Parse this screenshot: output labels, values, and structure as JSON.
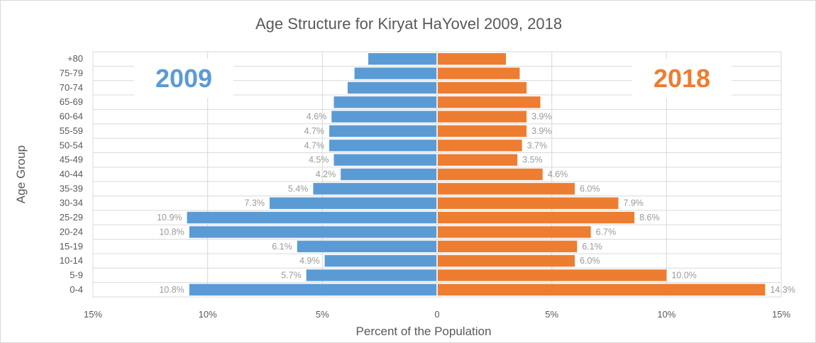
{
  "chart_data": {
    "type": "bar",
    "orientation": "horizontal-pyramid",
    "title": "Age Structure for Kiryat HaYovel 2009, 2018",
    "xlabel": "Percent of the Population",
    "ylabel": "Age Group",
    "xlim": [
      -15,
      15
    ],
    "xticks": [
      "15%",
      "10%",
      "5%",
      "0",
      "5%",
      "10%",
      "15%"
    ],
    "grid": true,
    "categories": [
      "0-4",
      "5-9",
      "10-14",
      "15-19",
      "20-24",
      "25-29",
      "30-34",
      "35-39",
      "40-44",
      "45-49",
      "50-54",
      "55-59",
      "60-64",
      "65-69",
      "70-74",
      "75-79",
      "+80"
    ],
    "series": [
      {
        "name": "2009",
        "side": "left",
        "color": "#5b9bd5",
        "values": [
          10.8,
          5.7,
          4.9,
          6.1,
          10.8,
          10.9,
          7.3,
          5.4,
          4.2,
          4.5,
          4.7,
          4.7,
          4.6,
          4.5,
          3.9,
          3.6,
          3.0
        ],
        "labels": [
          "10.8%",
          "5.7%",
          "4.9%",
          "6.1%",
          "10.8%",
          "10.9%",
          "7.3%",
          "5.4%",
          "4.2%",
          "4.5%",
          "4.7%",
          "4.7%",
          "4.6%",
          "",
          "",
          "",
          ""
        ]
      },
      {
        "name": "2018",
        "side": "right",
        "color": "#ed7d31",
        "values": [
          14.3,
          10.0,
          6.0,
          6.1,
          6.7,
          8.6,
          7.9,
          6.0,
          4.6,
          3.5,
          3.7,
          3.9,
          3.9,
          4.5,
          3.9,
          3.6,
          3.0
        ],
        "labels": [
          "14.3%",
          "10.0%",
          "6.0%",
          "6.1%",
          "6.7%",
          "8.6%",
          "7.9%",
          "6.0%",
          "4.6%",
          "3.5%",
          "3.7%",
          "3.9%",
          "3.9%",
          "",
          "",
          "",
          ""
        ]
      }
    ]
  }
}
